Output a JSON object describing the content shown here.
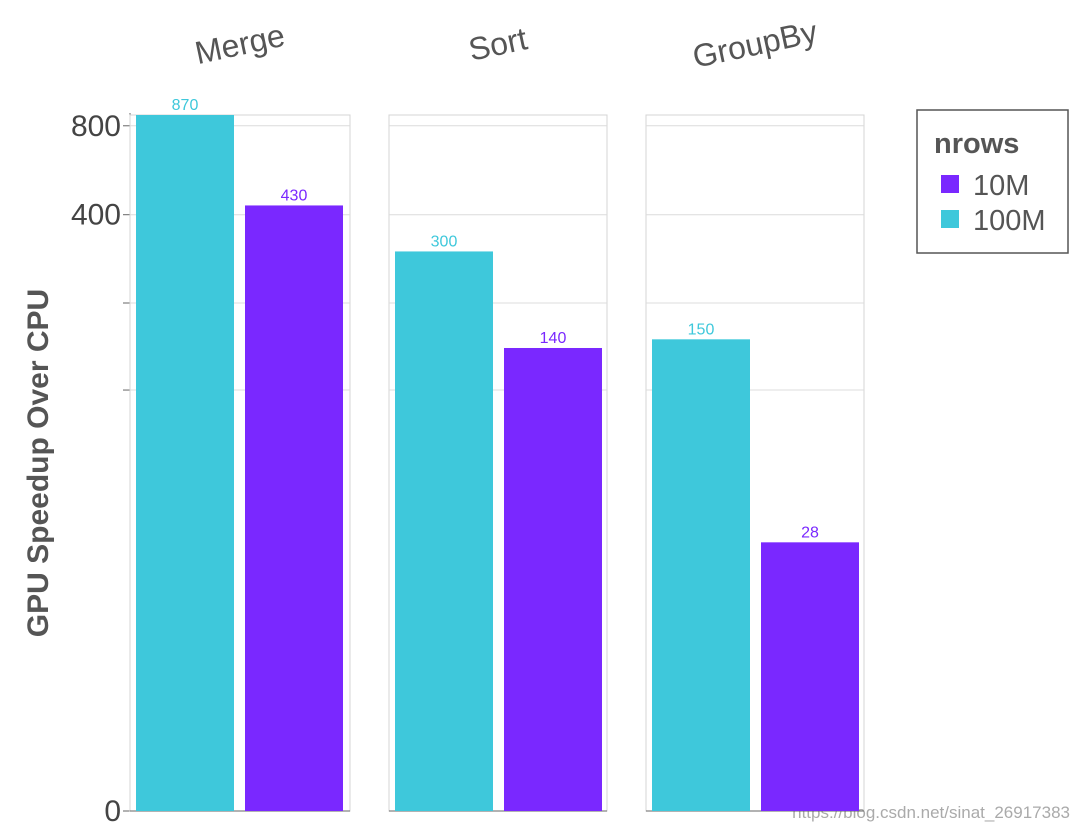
{
  "chart_data": {
    "type": "bar",
    "layout": "faceted",
    "ylabel": "GPU Speedup Over CPU",
    "yscale": "symlog",
    "ylim": [
      0,
      870
    ],
    "yticks": [
      {
        "value": 0,
        "label": "0"
      },
      {
        "value": 400,
        "label": "400"
      },
      {
        "value": 800,
        "label": "800"
      }
    ],
    "grid": true,
    "legend": {
      "title": "nrows",
      "position": "right-top",
      "entries": [
        {
          "name": "10M",
          "color": "#7a28ff"
        },
        {
          "name": "100M",
          "color": "#3ec8db"
        }
      ]
    },
    "facets": [
      {
        "name": "Merge",
        "bars": [
          {
            "series": "100M",
            "value": 870,
            "label": "870"
          },
          {
            "series": "10M",
            "value": 430,
            "label": "430"
          }
        ]
      },
      {
        "name": "Sort",
        "bars": [
          {
            "series": "100M",
            "value": 300,
            "label": "300"
          },
          {
            "series": "10M",
            "value": 140,
            "label": "140"
          }
        ]
      },
      {
        "name": "GroupBy",
        "bars": [
          {
            "series": "100M",
            "value": 150,
            "label": "150"
          },
          {
            "series": "10M",
            "value": 28,
            "label": "28"
          }
        ]
      }
    ]
  },
  "watermark": "https://blog.csdn.net/sinat_26917383"
}
